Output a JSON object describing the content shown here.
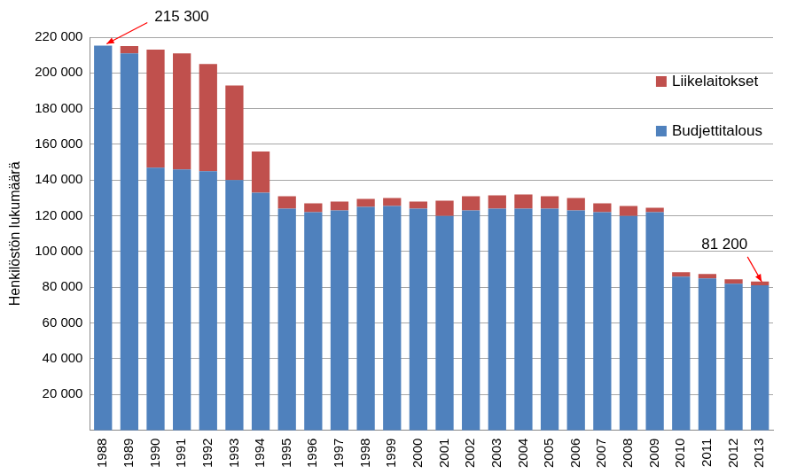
{
  "chart_data": {
    "type": "bar",
    "stacked": true,
    "y_label": "Henkilöstön lukumäärä",
    "categories": [
      "1988",
      "1989",
      "1990",
      "1991",
      "1992",
      "1993",
      "1994",
      "1995",
      "1996",
      "1997",
      "1998",
      "1999",
      "2000",
      "2001",
      "2002",
      "2003",
      "2004",
      "2005",
      "2006",
      "2007",
      "2008",
      "2009",
      "2010",
      "2011",
      "2012",
      "2013"
    ],
    "series": [
      {
        "name": "Budjettitalous",
        "color": "#4f81bd",
        "values": [
          215300,
          211000,
          147000,
          146000,
          145000,
          140000,
          133000,
          124000,
          122000,
          123000,
          125000,
          125500,
          124000,
          120000,
          123000,
          124000,
          124000,
          124000,
          123000,
          122000,
          120000,
          122000,
          86000,
          85000,
          82000,
          81200
        ]
      },
      {
        "name": "Liikelaitokset",
        "color": "#c0504d",
        "values": [
          0,
          4000,
          66000,
          65000,
          60000,
          53000,
          23000,
          7000,
          5000,
          5000,
          4500,
          4500,
          4000,
          8500,
          8000,
          7500,
          8000,
          7000,
          7000,
          5000,
          5500,
          2500,
          2500,
          2500,
          2500,
          2000
        ]
      }
    ],
    "ylim": [
      0,
      220000
    ],
    "yticks": [
      {
        "value": 20000,
        "label": "20 000"
      },
      {
        "value": 40000,
        "label": "40 000"
      },
      {
        "value": 60000,
        "label": "60 000"
      },
      {
        "value": 80000,
        "label": "80 000"
      },
      {
        "value": 100000,
        "label": "100 000"
      },
      {
        "value": 120000,
        "label": "120 000"
      },
      {
        "value": 140000,
        "label": "140 000"
      },
      {
        "value": 160000,
        "label": "160 000"
      },
      {
        "value": 180000,
        "label": "180 000"
      },
      {
        "value": 200000,
        "label": "200 000"
      },
      {
        "value": 220000,
        "label": "220 000"
      }
    ],
    "grid": true,
    "legend": "right",
    "annotations": [
      {
        "text": "215 300",
        "category": "1988",
        "value": 215300
      },
      {
        "text": "81 200",
        "category": "2013",
        "value": 81200
      }
    ]
  }
}
